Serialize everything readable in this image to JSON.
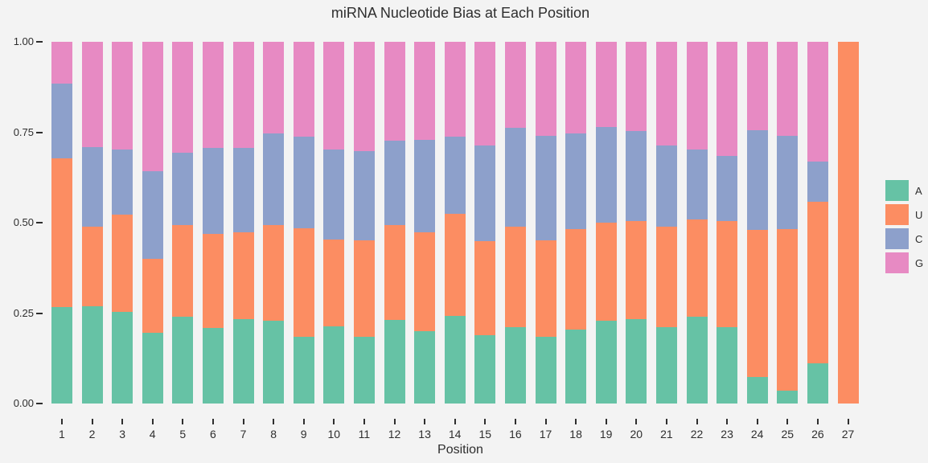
{
  "colors": {
    "background": "#f3f3f3",
    "text": "#2e2e2e",
    "A": "#66C2A5",
    "U": "#FC8D62",
    "C": "#8DA0CB",
    "G": "#E78AC3"
  },
  "chart_data": {
    "type": "bar",
    "stacked": true,
    "title": "miRNA Nucleotide Bias at Each Position",
    "xlabel": "Position",
    "ylabel": "",
    "ylim": [
      0,
      1
    ],
    "yticks": [
      {
        "value": 0.0,
        "label": "0.00"
      },
      {
        "value": 0.25,
        "label": "0.25"
      },
      {
        "value": 0.5,
        "label": "0.50"
      },
      {
        "value": 0.75,
        "label": "0.75"
      },
      {
        "value": 1.0,
        "label": "1.00"
      }
    ],
    "grid": false,
    "legend_position": "right",
    "categories": [
      "1",
      "2",
      "3",
      "4",
      "5",
      "6",
      "7",
      "8",
      "9",
      "10",
      "11",
      "12",
      "13",
      "14",
      "15",
      "16",
      "17",
      "18",
      "19",
      "20",
      "21",
      "22",
      "23",
      "24",
      "25",
      "26",
      "27"
    ],
    "series": [
      {
        "name": "A",
        "color": "#66C2A5",
        "values": [
          0.267,
          0.27,
          0.253,
          0.196,
          0.241,
          0.208,
          0.233,
          0.228,
          0.185,
          0.213,
          0.185,
          0.232,
          0.2,
          0.242,
          0.19,
          0.211,
          0.185,
          0.205,
          0.228,
          0.233,
          0.211,
          0.239,
          0.211,
          0.074,
          0.035,
          0.111,
          0.0
        ]
      },
      {
        "name": "U",
        "color": "#FC8D62",
        "values": [
          0.41,
          0.219,
          0.269,
          0.204,
          0.253,
          0.262,
          0.241,
          0.266,
          0.3,
          0.24,
          0.267,
          0.262,
          0.274,
          0.282,
          0.26,
          0.279,
          0.267,
          0.278,
          0.272,
          0.271,
          0.278,
          0.269,
          0.293,
          0.405,
          0.448,
          0.446,
          1.0
        ]
      },
      {
        "name": "C",
        "color": "#8DA0CB",
        "values": [
          0.208,
          0.221,
          0.18,
          0.242,
          0.199,
          0.236,
          0.233,
          0.252,
          0.252,
          0.249,
          0.246,
          0.232,
          0.254,
          0.213,
          0.263,
          0.273,
          0.287,
          0.263,
          0.265,
          0.249,
          0.224,
          0.194,
          0.18,
          0.277,
          0.256,
          0.112,
          0.0
        ]
      },
      {
        "name": "G",
        "color": "#E78AC3",
        "values": [
          0.115,
          0.29,
          0.298,
          0.358,
          0.307,
          0.294,
          0.293,
          0.254,
          0.263,
          0.298,
          0.302,
          0.274,
          0.272,
          0.263,
          0.287,
          0.237,
          0.261,
          0.254,
          0.235,
          0.247,
          0.287,
          0.298,
          0.316,
          0.244,
          0.261,
          0.331,
          0.0
        ]
      }
    ]
  }
}
